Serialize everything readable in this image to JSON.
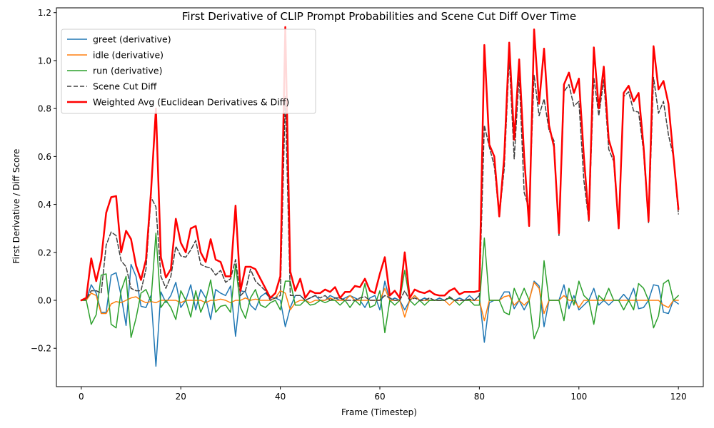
{
  "chart_data": {
    "type": "line",
    "title": "First Derivative of CLIP Prompt Probabilities and Scene Cut Diff Over Time",
    "xlabel": "Frame (Timestep)",
    "ylabel": "First Derivative / Diff Score",
    "xlim": [
      -5,
      125
    ],
    "ylim": [
      -0.36,
      1.22
    ],
    "xticks": [
      0,
      20,
      40,
      60,
      80,
      100,
      120
    ],
    "yticks": [
      -0.2,
      0.0,
      0.2,
      0.4,
      0.6,
      0.8,
      1.0,
      1.2
    ],
    "xtick_labels": [
      "0",
      "20",
      "40",
      "60",
      "80",
      "100",
      "120"
    ],
    "ytick_labels": [
      "−0.2",
      "0.0",
      "0.2",
      "0.4",
      "0.6",
      "0.8",
      "1.0",
      "1.2"
    ],
    "grid": false,
    "legend_position": "top-left",
    "x": [
      0,
      1,
      2,
      3,
      4,
      5,
      6,
      7,
      8,
      9,
      10,
      11,
      12,
      13,
      14,
      15,
      16,
      17,
      18,
      19,
      20,
      21,
      22,
      23,
      24,
      25,
      26,
      27,
      28,
      29,
      30,
      31,
      32,
      33,
      34,
      35,
      36,
      37,
      38,
      39,
      40,
      41,
      42,
      43,
      44,
      45,
      46,
      47,
      48,
      49,
      50,
      51,
      52,
      53,
      54,
      55,
      56,
      57,
      58,
      59,
      60,
      61,
      62,
      63,
      64,
      65,
      66,
      67,
      68,
      69,
      70,
      71,
      72,
      73,
      74,
      75,
      76,
      77,
      78,
      79,
      80,
      81,
      82,
      83,
      84,
      85,
      86,
      87,
      88,
      89,
      90,
      91,
      92,
      93,
      94,
      95,
      96,
      97,
      98,
      99,
      100,
      101,
      102,
      103,
      104,
      105,
      106,
      107,
      108,
      109,
      110,
      111,
      112,
      113,
      114,
      115,
      116,
      117,
      118,
      119,
      120
    ],
    "series": [
      {
        "name": "greet (derivative)",
        "color": "#1f77b4",
        "style": "solid",
        "width": 1.5,
        "values": [
          0,
          0,
          0.065,
          0.03,
          -0.05,
          -0.05,
          0.105,
          0.115,
          0.02,
          -0.105,
          0.15,
          0.1,
          -0.025,
          -0.03,
          0.02,
          -0.275,
          0.035,
          -0.01,
          0.02,
          0.075,
          -0.03,
          0,
          0.065,
          -0.04,
          0.045,
          0.01,
          -0.08,
          0.045,
          0.03,
          0.02,
          0.06,
          -0.15,
          0.04,
          0.035,
          -0.02,
          -0.04,
          0.015,
          0.03,
          0.01,
          0.01,
          0.0,
          -0.11,
          -0.03,
          0.02,
          0.02,
          0.0,
          0.01,
          0.02,
          0.0,
          0.0,
          0.02,
          0.01,
          0.0,
          0.01,
          0.02,
          0.01,
          0.0,
          -0.03,
          0.01,
          0.02,
          -0.04,
          0.08,
          0.0,
          0.01,
          0.0,
          -0.04,
          0.0,
          0.02,
          0.0,
          0.01,
          0.0,
          0.0,
          0.01,
          0.0,
          0.01,
          0.0,
          0.01,
          0.0,
          0.02,
          0.0,
          0.02,
          -0.175,
          -0.01,
          0.0,
          0.0,
          0.035,
          0.035,
          -0.035,
          0.0,
          -0.04,
          0.0,
          0.08,
          0.06,
          -0.11,
          0.0,
          0.0,
          0.0,
          0.065,
          -0.035,
          0.02,
          -0.04,
          -0.02,
          0.0,
          0.05,
          -0.02,
          0.0,
          -0.02,
          0.0,
          0.0,
          0.025,
          0.0,
          0.05,
          -0.035,
          -0.03,
          0.0,
          0.065,
          0.06,
          -0.05,
          -0.055,
          0.0,
          -0.015
        ]
      },
      {
        "name": "idle (derivative)",
        "color": "#ff7f0e",
        "style": "solid",
        "width": 1.5,
        "values": [
          0,
          0,
          0.03,
          0.02,
          -0.055,
          -0.055,
          -0.015,
          -0.005,
          -0.01,
          0.0,
          0.01,
          0.015,
          0.0,
          -0.01,
          -0.005,
          -0.01,
          0.0,
          0.0,
          0.0,
          0.0,
          -0.01,
          0.0,
          0.0,
          0.0,
          0.0,
          -0.01,
          0.0,
          0.0,
          0.005,
          0.0,
          -0.01,
          0.0,
          0.0,
          0.01,
          0.0,
          0.005,
          0.0,
          0.0,
          0.0,
          0.01,
          0.04,
          0.03,
          -0.04,
          -0.01,
          0.0,
          0.0,
          -0.01,
          0.0,
          0.0,
          0.0,
          0.01,
          0.0,
          0.0,
          0.0,
          0.02,
          0.0,
          0.0,
          0.0,
          0.0,
          0.0,
          0.0,
          0.05,
          0.0,
          0.0,
          0.0,
          -0.07,
          0.0,
          0.02,
          0.0,
          0.0,
          0.0,
          0.0,
          0.0,
          0.0,
          -0.02,
          0.0,
          0.0,
          0.0,
          0.0,
          0.0,
          0.0,
          -0.085,
          0.0,
          0.0,
          0.0,
          0.015,
          0.02,
          -0.02,
          0.0,
          -0.02,
          0.0,
          0.075,
          0.05,
          -0.055,
          0.0,
          0.0,
          0.0,
          0.02,
          0.0,
          0.0,
          -0.03,
          0.0,
          0.0,
          0.0,
          0.0,
          0.0,
          0.0,
          0.0,
          0.0,
          0.0,
          0.0,
          0.0,
          0.0,
          0.0,
          0.0,
          0.0,
          0.0,
          -0.02,
          -0.03,
          0.0,
          0.0
        ]
      },
      {
        "name": "run (derivative)",
        "color": "#2ca02c",
        "style": "solid",
        "width": 1.5,
        "values": [
          0,
          0,
          -0.1,
          -0.06,
          0.105,
          0.11,
          -0.1,
          -0.115,
          0.04,
          0.1,
          -0.155,
          -0.075,
          0.03,
          0.045,
          -0.005,
          0.28,
          -0.03,
          0.0,
          -0.03,
          -0.08,
          0.04,
          0.0,
          -0.07,
          0.04,
          -0.05,
          0.0,
          0.085,
          -0.05,
          -0.025,
          -0.02,
          -0.05,
          0.15,
          -0.03,
          -0.075,
          0.01,
          0.045,
          -0.02,
          -0.03,
          -0.01,
          0.0,
          -0.04,
          0.08,
          0.08,
          -0.02,
          -0.02,
          0.0,
          -0.02,
          -0.015,
          0.0,
          -0.01,
          0.0,
          0.0,
          -0.02,
          0.0,
          -0.03,
          0.0,
          -0.02,
          0.07,
          -0.03,
          -0.02,
          0.04,
          -0.135,
          0.0,
          -0.02,
          0.0,
          0.125,
          0.0,
          -0.02,
          0.0,
          -0.02,
          0.0,
          0.0,
          0.0,
          0.0,
          0.01,
          0.0,
          -0.02,
          0.0,
          0.0,
          -0.02,
          -0.02,
          0.26,
          0.0,
          0.0,
          0.0,
          -0.05,
          -0.06,
          0.05,
          0.0,
          0.05,
          0.0,
          -0.16,
          -0.11,
          0.165,
          0.0,
          0.0,
          0.0,
          -0.085,
          0.05,
          -0.02,
          0.08,
          0.02,
          0.0,
          -0.1,
          0.02,
          0.0,
          0.05,
          0.0,
          0.0,
          -0.04,
          0.0,
          -0.04,
          0.07,
          0.05,
          0.0,
          -0.115,
          -0.065,
          0.07,
          0.085,
          0.0,
          0.02
        ]
      },
      {
        "name": "Scene Cut Diff",
        "color": "#404040",
        "style": "dashed",
        "width": 1.5,
        "values": [
          0,
          0.005,
          0.04,
          0.04,
          0.03,
          0.23,
          0.285,
          0.27,
          0.165,
          0.14,
          0.05,
          0.04,
          0.04,
          0.13,
          0.43,
          0.39,
          0.1,
          0.05,
          0.1,
          0.225,
          0.185,
          0.18,
          0.21,
          0.25,
          0.15,
          0.14,
          0.135,
          0.105,
          0.125,
          0.075,
          0.09,
          0.17,
          0.02,
          0.04,
          0.13,
          0.08,
          0.06,
          0.04,
          0.0,
          0.01,
          0.02,
          0.85,
          0.02,
          0.02,
          0.02,
          0.0,
          0.01,
          0.02,
          0.01,
          0.02,
          0.0,
          0.01,
          0.01,
          0.0,
          0.0,
          0.0,
          0.01,
          0.015,
          0.0,
          0.0,
          0.0,
          0.02,
          0.01,
          0.0,
          0.0,
          0.04,
          0.0,
          0.01,
          0.0,
          0.0,
          0.01,
          0.0,
          0.0,
          0.0,
          0.015,
          0.0,
          0.0,
          0.0,
          0.005,
          0.0,
          0.02,
          0.73,
          0.64,
          0.56,
          0.35,
          0.55,
          1.01,
          0.59,
          0.94,
          0.45,
          0.38,
          0.94,
          0.77,
          0.84,
          0.71,
          0.665,
          0.27,
          0.87,
          0.9,
          0.81,
          0.83,
          0.5,
          0.33,
          0.93,
          0.77,
          0.92,
          0.63,
          0.58,
          0.3,
          0.85,
          0.87,
          0.79,
          0.785,
          0.62,
          0.32,
          0.93,
          0.78,
          0.83,
          0.69,
          0.6,
          0.36
        ]
      },
      {
        "name": "Weighted Avg (Euclidean Derivatives & Diff)",
        "color": "#ff0000",
        "style": "solid",
        "width": 2.5,
        "values": [
          0,
          0.01,
          0.175,
          0.08,
          0.17,
          0.365,
          0.43,
          0.435,
          0.2,
          0.29,
          0.255,
          0.145,
          0.085,
          0.17,
          0.45,
          0.8,
          0.18,
          0.095,
          0.13,
          0.34,
          0.24,
          0.2,
          0.3,
          0.31,
          0.2,
          0.16,
          0.255,
          0.17,
          0.16,
          0.1,
          0.1,
          0.395,
          0.04,
          0.14,
          0.14,
          0.13,
          0.09,
          0.05,
          0.01,
          0.03,
          0.1,
          1.14,
          0.12,
          0.04,
          0.09,
          0.01,
          0.04,
          0.03,
          0.03,
          0.045,
          0.035,
          0.055,
          0.01,
          0.035,
          0.035,
          0.06,
          0.055,
          0.09,
          0.04,
          0.03,
          0.11,
          0.18,
          0.02,
          0.04,
          0.01,
          0.2,
          0.01,
          0.045,
          0.035,
          0.03,
          0.04,
          0.025,
          0.02,
          0.02,
          0.04,
          0.05,
          0.025,
          0.035,
          0.035,
          0.035,
          0.04,
          1.065,
          0.65,
          0.6,
          0.35,
          0.6,
          1.075,
          0.67,
          1.005,
          0.6,
          0.31,
          1.13,
          0.82,
          1.05,
          0.73,
          0.64,
          0.28,
          0.9,
          0.95,
          0.865,
          0.925,
          0.6,
          0.335,
          1.055,
          0.8,
          0.975,
          0.67,
          0.6,
          0.3,
          0.865,
          0.895,
          0.83,
          0.865,
          0.64,
          0.33,
          1.06,
          0.88,
          0.915,
          0.82,
          0.6,
          0.38
        ]
      }
    ]
  }
}
